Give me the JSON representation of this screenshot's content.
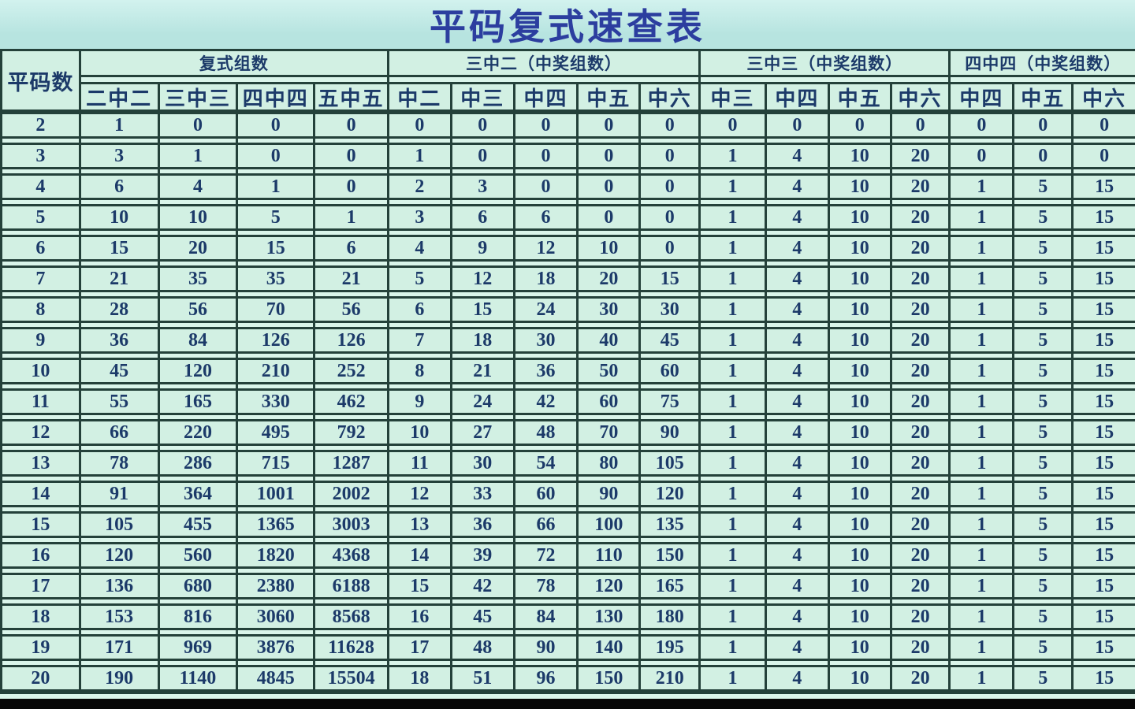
{
  "title": "平码复式速查表",
  "table": {
    "corner_header": "平码数",
    "groups": [
      {
        "label": "复式组数",
        "columns": [
          "二中二",
          "三中三",
          "四中四",
          "五中五"
        ]
      },
      {
        "label": "三中二（中奖组数）",
        "columns": [
          "中二",
          "中三",
          "中四",
          "中五",
          "中六"
        ]
      },
      {
        "label": "三中三（中奖组数）",
        "columns": [
          "中三",
          "中四",
          "中五",
          "中六"
        ]
      },
      {
        "label": "四中四（中奖组数）",
        "columns": [
          "中四",
          "中五",
          "中六"
        ]
      }
    ],
    "rows": [
      [
        2,
        1,
        0,
        0,
        0,
        0,
        0,
        0,
        0,
        0,
        0,
        0,
        0,
        0,
        0,
        0,
        0
      ],
      [
        3,
        3,
        1,
        0,
        0,
        1,
        0,
        0,
        0,
        0,
        1,
        4,
        10,
        20,
        0,
        0,
        0
      ],
      [
        4,
        6,
        4,
        1,
        0,
        2,
        3,
        0,
        0,
        0,
        1,
        4,
        10,
        20,
        1,
        5,
        15
      ],
      [
        5,
        10,
        10,
        5,
        1,
        3,
        6,
        6,
        0,
        0,
        1,
        4,
        10,
        20,
        1,
        5,
        15
      ],
      [
        6,
        15,
        20,
        15,
        6,
        4,
        9,
        12,
        10,
        0,
        1,
        4,
        10,
        20,
        1,
        5,
        15
      ],
      [
        7,
        21,
        35,
        35,
        21,
        5,
        12,
        18,
        20,
        15,
        1,
        4,
        10,
        20,
        1,
        5,
        15
      ],
      [
        8,
        28,
        56,
        70,
        56,
        6,
        15,
        24,
        30,
        30,
        1,
        4,
        10,
        20,
        1,
        5,
        15
      ],
      [
        9,
        36,
        84,
        126,
        126,
        7,
        18,
        30,
        40,
        45,
        1,
        4,
        10,
        20,
        1,
        5,
        15
      ],
      [
        10,
        45,
        120,
        210,
        252,
        8,
        21,
        36,
        50,
        60,
        1,
        4,
        10,
        20,
        1,
        5,
        15
      ],
      [
        11,
        55,
        165,
        330,
        462,
        9,
        24,
        42,
        60,
        75,
        1,
        4,
        10,
        20,
        1,
        5,
        15
      ],
      [
        12,
        66,
        220,
        495,
        792,
        10,
        27,
        48,
        70,
        90,
        1,
        4,
        10,
        20,
        1,
        5,
        15
      ],
      [
        13,
        78,
        286,
        715,
        1287,
        11,
        30,
        54,
        80,
        105,
        1,
        4,
        10,
        20,
        1,
        5,
        15
      ],
      [
        14,
        91,
        364,
        1001,
        2002,
        12,
        33,
        60,
        90,
        120,
        1,
        4,
        10,
        20,
        1,
        5,
        15
      ],
      [
        15,
        105,
        455,
        1365,
        3003,
        13,
        36,
        66,
        100,
        135,
        1,
        4,
        10,
        20,
        1,
        5,
        15
      ],
      [
        16,
        120,
        560,
        1820,
        4368,
        14,
        39,
        72,
        110,
        150,
        1,
        4,
        10,
        20,
        1,
        5,
        15
      ],
      [
        17,
        136,
        680,
        2380,
        6188,
        15,
        42,
        78,
        120,
        165,
        1,
        4,
        10,
        20,
        1,
        5,
        15
      ],
      [
        18,
        153,
        816,
        3060,
        8568,
        16,
        45,
        84,
        130,
        180,
        1,
        4,
        10,
        20,
        1,
        5,
        15
      ],
      [
        19,
        171,
        969,
        3876,
        11628,
        17,
        48,
        90,
        140,
        195,
        1,
        4,
        10,
        20,
        1,
        5,
        15
      ],
      [
        20,
        190,
        1140,
        4845,
        15504,
        18,
        51,
        96,
        150,
        210,
        1,
        4,
        10,
        20,
        1,
        5,
        15
      ]
    ]
  },
  "colors": {
    "line": "#24413a",
    "cell_bg": "#d2f0e3",
    "gap_bg": "#daf5ea",
    "title_bg": "#b7e4e0",
    "title_text": "#2c3e9f",
    "cell_text": "#1c3a69",
    "bar": "#070707"
  }
}
